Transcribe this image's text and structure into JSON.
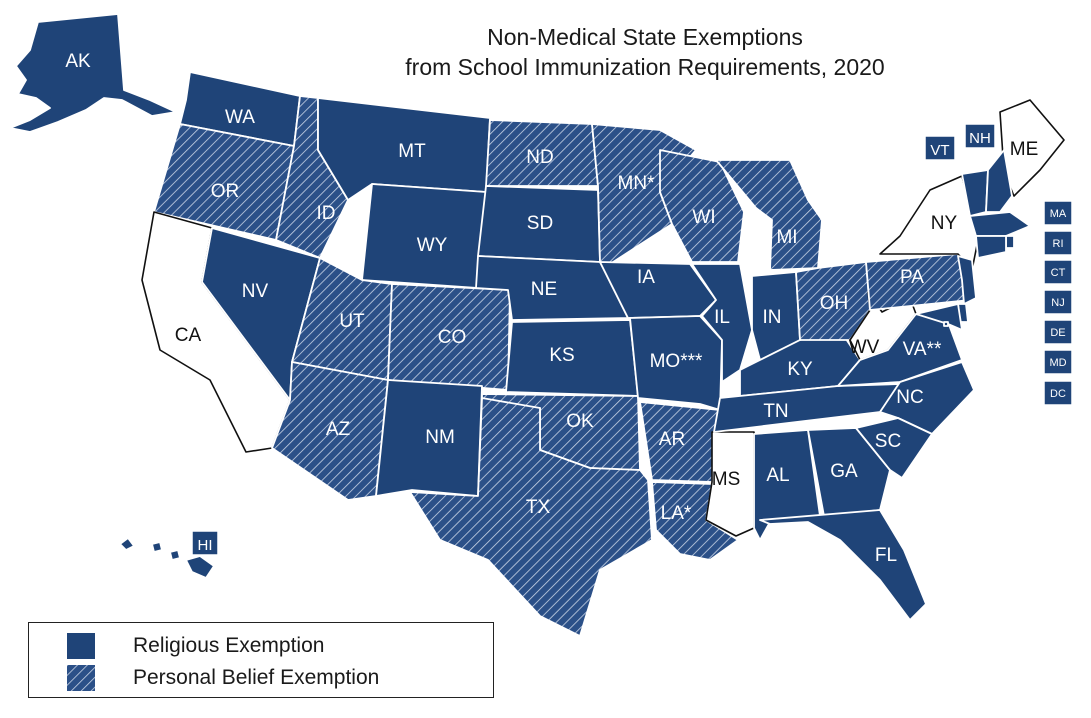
{
  "title": {
    "line1": "Non-Medical State Exemptions",
    "line2": "from School Immunization Requirements, 2020"
  },
  "colors": {
    "religious": "#1f4478",
    "personal_hatch_bg": "#2b5088",
    "none": "#ffffff",
    "border": "#ffffff"
  },
  "legend": {
    "religious_label": "Religious Exemption",
    "personal_label": "Personal Belief Exemption"
  },
  "states": [
    {
      "abbr": "AK",
      "category": "religious"
    },
    {
      "abbr": "HI",
      "category": "religious"
    },
    {
      "abbr": "WA",
      "category": "religious"
    },
    {
      "abbr": "OR",
      "category": "personal"
    },
    {
      "abbr": "CA",
      "category": "none"
    },
    {
      "abbr": "ID",
      "category": "personal"
    },
    {
      "abbr": "NV",
      "category": "religious"
    },
    {
      "abbr": "MT",
      "category": "religious"
    },
    {
      "abbr": "WY",
      "category": "religious"
    },
    {
      "abbr": "UT",
      "category": "personal"
    },
    {
      "abbr": "AZ",
      "category": "personal"
    },
    {
      "abbr": "CO",
      "category": "personal"
    },
    {
      "abbr": "NM",
      "category": "religious"
    },
    {
      "abbr": "ND",
      "category": "personal"
    },
    {
      "abbr": "SD",
      "category": "religious"
    },
    {
      "abbr": "NE",
      "category": "religious"
    },
    {
      "abbr": "KS",
      "category": "religious"
    },
    {
      "abbr": "OK",
      "category": "personal"
    },
    {
      "abbr": "TX",
      "category": "personal"
    },
    {
      "abbr": "MN*",
      "category": "personal"
    },
    {
      "abbr": "IA",
      "category": "religious"
    },
    {
      "abbr": "MO***",
      "category": "religious"
    },
    {
      "abbr": "AR",
      "category": "personal"
    },
    {
      "abbr": "LA*",
      "category": "personal"
    },
    {
      "abbr": "WI",
      "category": "personal"
    },
    {
      "abbr": "IL",
      "category": "religious"
    },
    {
      "abbr": "MS",
      "category": "none"
    },
    {
      "abbr": "MI",
      "category": "personal"
    },
    {
      "abbr": "IN",
      "category": "religious"
    },
    {
      "abbr": "KY",
      "category": "religious"
    },
    {
      "abbr": "TN",
      "category": "religious"
    },
    {
      "abbr": "AL",
      "category": "religious"
    },
    {
      "abbr": "GA",
      "category": "religious"
    },
    {
      "abbr": "FL",
      "category": "religious"
    },
    {
      "abbr": "OH",
      "category": "personal"
    },
    {
      "abbr": "WV",
      "category": "none"
    },
    {
      "abbr": "VA**",
      "category": "religious"
    },
    {
      "abbr": "NC",
      "category": "religious"
    },
    {
      "abbr": "SC",
      "category": "religious"
    },
    {
      "abbr": "PA",
      "category": "personal"
    },
    {
      "abbr": "NY",
      "category": "none"
    },
    {
      "abbr": "ME",
      "category": "none"
    },
    {
      "abbr": "VT",
      "category": "religious"
    },
    {
      "abbr": "NH",
      "category": "religious"
    },
    {
      "abbr": "MA",
      "category": "religious"
    },
    {
      "abbr": "RI",
      "category": "religious"
    },
    {
      "abbr": "CT",
      "category": "religious"
    },
    {
      "abbr": "NJ",
      "category": "religious"
    },
    {
      "abbr": "DE",
      "category": "religious"
    },
    {
      "abbr": "MD",
      "category": "religious"
    },
    {
      "abbr": "DC",
      "category": "religious"
    }
  ]
}
